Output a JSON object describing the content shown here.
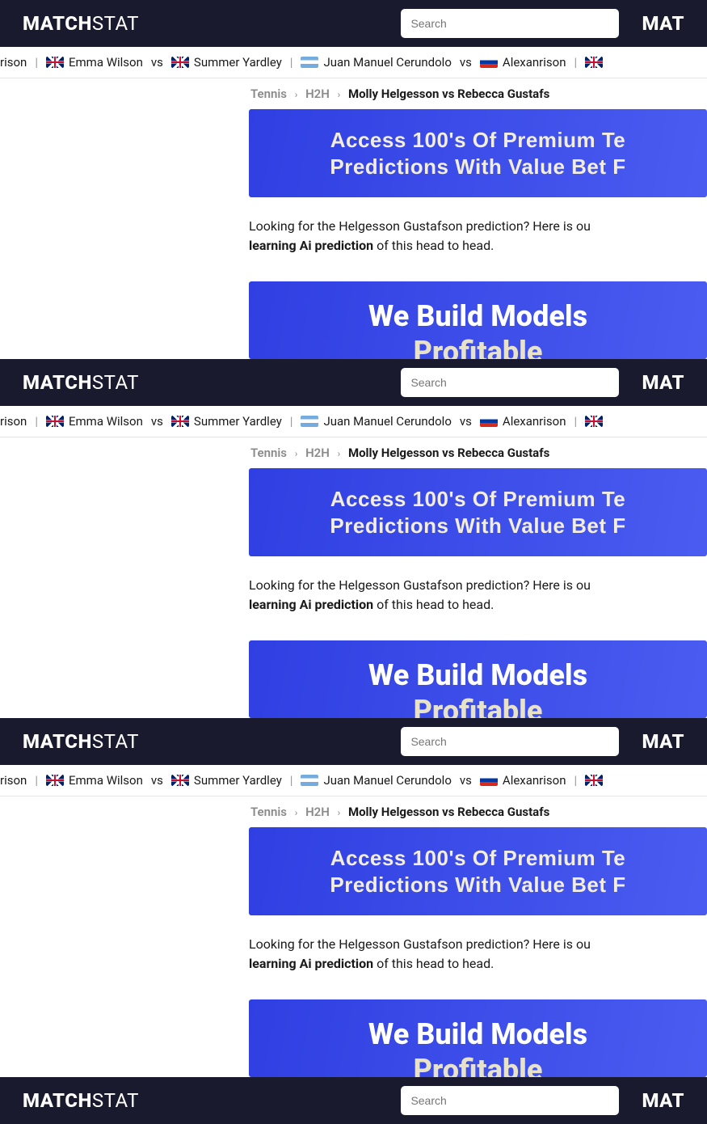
{
  "logo": {
    "main": "MATCH",
    "thin": "STAT",
    "right": "MAT"
  },
  "search": {
    "placeholder": "Search"
  },
  "ticker": {
    "separator": "|",
    "vs": "vs",
    "items": [
      {
        "flag": "",
        "name": "rison"
      },
      {
        "flag": "gb",
        "name": "Emma Wilson"
      },
      {
        "flag": "gb",
        "name": "Summer Yardley"
      },
      {
        "flag": "ar",
        "name": "Juan Manuel Cerundolo"
      },
      {
        "flag": "ru",
        "name": "Alexanrison"
      },
      {
        "flag": "gb",
        "name": ""
      }
    ]
  },
  "breadcrumb": {
    "tennis": "Tennis",
    "h2h": "H2H",
    "current": "Molly Helgesson vs Rebecca Gustafs"
  },
  "promo": {
    "line1": "Access 100's Of Premium Te",
    "line2": "Predictions With Value Bet F"
  },
  "para": {
    "lead": "Looking for the Helgesson Gustafson prediction? Here is ou",
    "bold": "learning Ai prediction",
    "tail": " of this head to head."
  },
  "models": {
    "title": "We Build Models ",
    "sub": "Profitable"
  }
}
